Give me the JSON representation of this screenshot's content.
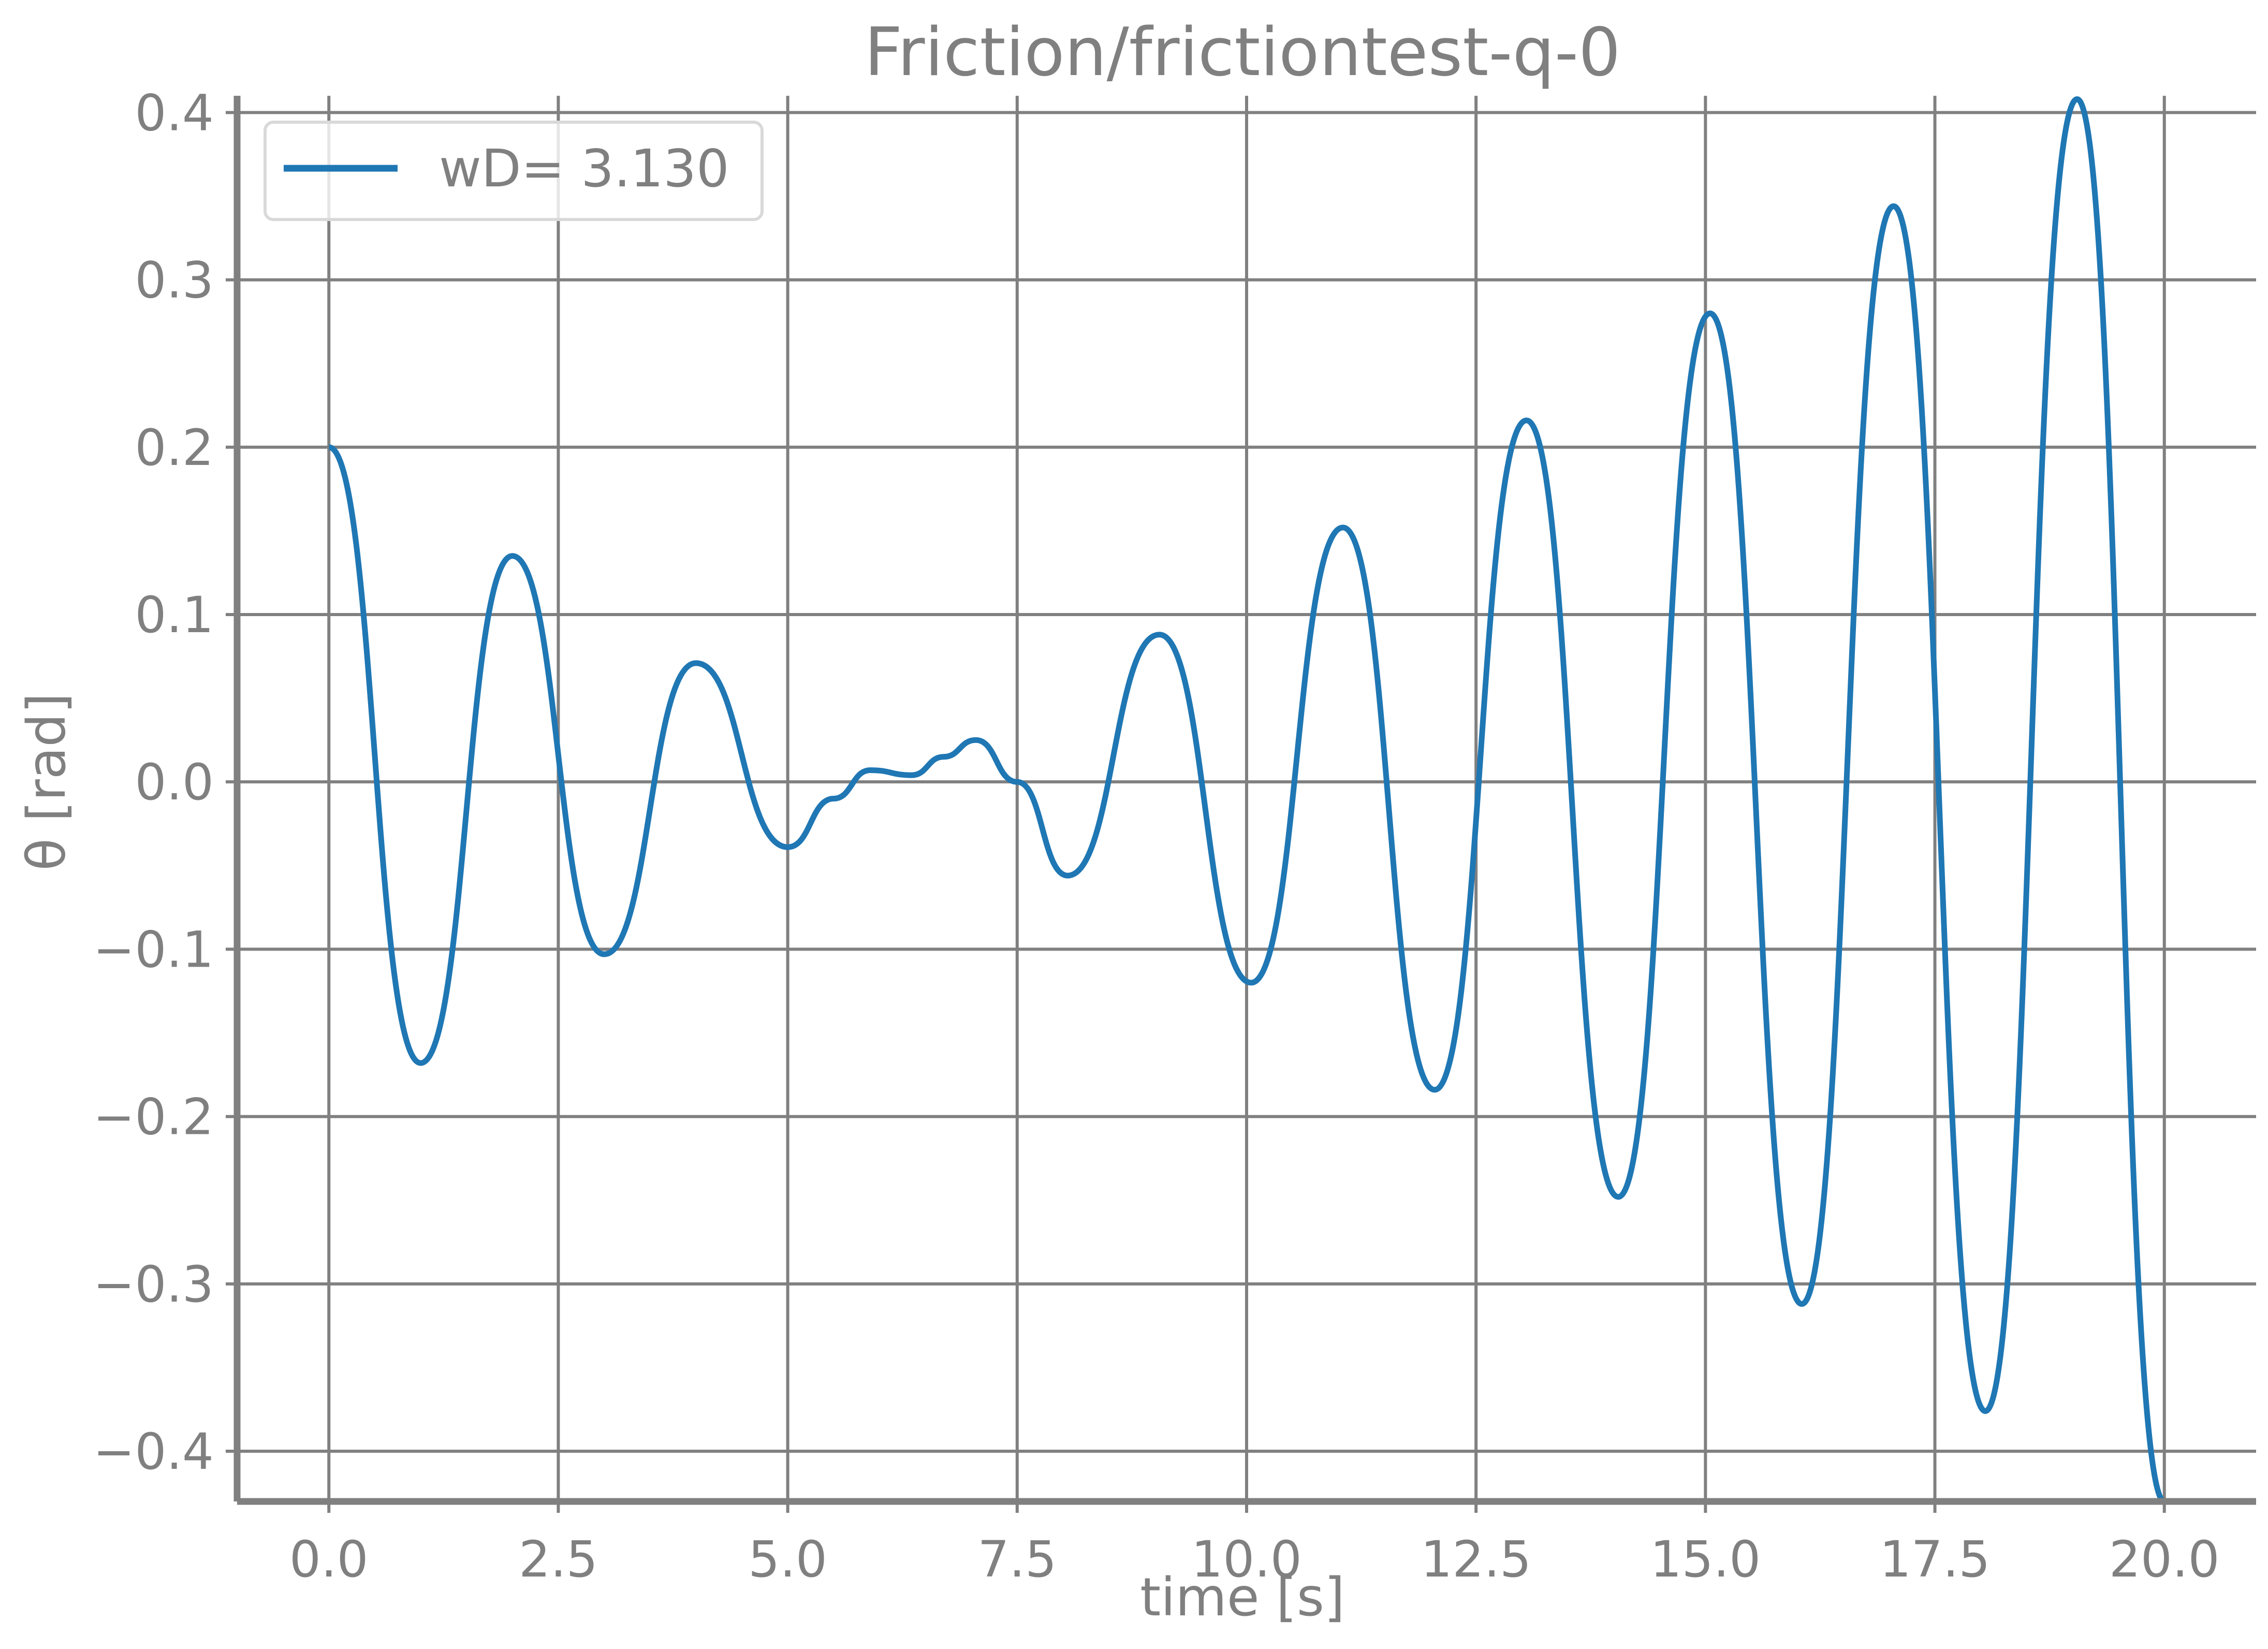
{
  "chart_data": {
    "type": "line",
    "title": "Friction/frictiontest-q-0",
    "xlabel": "time [s]",
    "ylabel": "θ [rad]",
    "xlim": [
      -1.0,
      21.0
    ],
    "ylim": [
      -0.43,
      0.41
    ],
    "xticks": [
      0.0,
      2.5,
      5.0,
      7.5,
      10.0,
      12.5,
      15.0,
      17.5,
      20.0
    ],
    "xtick_labels": [
      "0.0",
      "2.5",
      "5.0",
      "7.5",
      "10.0",
      "12.5",
      "15.0",
      "17.5",
      "20.0"
    ],
    "yticks": [
      -0.4,
      -0.3,
      -0.2,
      -0.1,
      0.0,
      0.1,
      0.2,
      0.3,
      0.4
    ],
    "ytick_labels": [
      "−0.4",
      "−0.3",
      "−0.2",
      "−0.1",
      "0.0",
      "0.1",
      "0.2",
      "0.3",
      "0.4"
    ],
    "grid": true,
    "legend": {
      "placement": "top-left"
    },
    "series": [
      {
        "name": "wD= 3.130",
        "color": "#1f77b4",
        "x": [
          0.0,
          1.0,
          2.0,
          3.0,
          4.0,
          5.0,
          5.5,
          5.9,
          6.35,
          6.7,
          7.05,
          7.5,
          8.05,
          9.05,
          10.05,
          11.05,
          12.05,
          13.05,
          14.05,
          15.05,
          16.05,
          17.05,
          18.05,
          19.05,
          20.0
        ],
        "y": [
          0.2,
          -0.168,
          0.135,
          -0.103,
          0.071,
          -0.039,
          -0.01,
          0.007,
          0.004,
          0.015,
          0.025,
          0.0,
          -0.056,
          0.088,
          -0.12,
          0.152,
          -0.184,
          0.216,
          -0.248,
          0.28,
          -0.312,
          0.344,
          -0.376,
          0.408,
          -0.43
        ]
      }
    ]
  }
}
